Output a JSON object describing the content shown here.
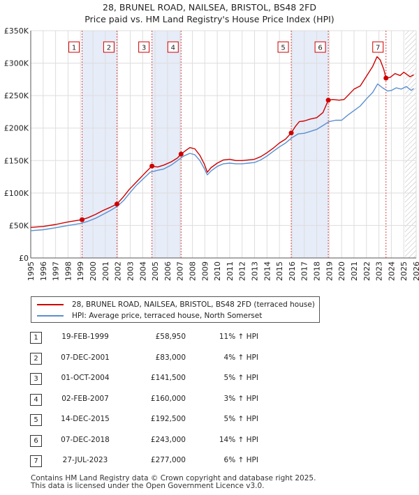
{
  "title_line1": "28, BRUNEL ROAD, NAILSEA, BRISTOL, BS48 2FD",
  "title_line2": "Price paid vs. HM Land Registry's House Price Index (HPI)",
  "chart_data": {
    "type": "line",
    "title": "28, BRUNEL ROAD, NAILSEA, BRISTOL, BS48 2FD — Price paid vs. HM Land Registry's House Price Index (HPI)",
    "xlim": [
      1995,
      2026
    ],
    "ylim": [
      0,
      350000
    ],
    "x_ticks": [
      1995,
      1996,
      1997,
      1998,
      1999,
      2000,
      2001,
      2002,
      2003,
      2004,
      2005,
      2006,
      2007,
      2008,
      2009,
      2010,
      2011,
      2012,
      2013,
      2014,
      2015,
      2016,
      2017,
      2018,
      2019,
      2020,
      2021,
      2022,
      2023,
      2024,
      2025,
      2026
    ],
    "y_ticks": [
      0,
      50000,
      100000,
      150000,
      200000,
      250000,
      300000,
      350000
    ],
    "y_tick_labels": [
      "£0",
      "£50K",
      "£100K",
      "£150K",
      "£200K",
      "£250K",
      "£300K",
      "£350K"
    ],
    "grid": true,
    "forecast_from": 2025.1,
    "series": [
      {
        "name": "28, BRUNEL ROAD, NAILSEA, BRISTOL, BS48 2FD (terraced house)",
        "color": "#cc0000",
        "points": [
          [
            1995.0,
            47000
          ],
          [
            1996.0,
            48500
          ],
          [
            1997.0,
            51500
          ],
          [
            1998.0,
            55500
          ],
          [
            1999.13,
            58950
          ],
          [
            1999.6,
            62000
          ],
          [
            2000.2,
            67000
          ],
          [
            2000.8,
            73000
          ],
          [
            2001.4,
            78000
          ],
          [
            2001.93,
            83000
          ],
          [
            2002.4,
            93000
          ],
          [
            2002.9,
            105000
          ],
          [
            2003.5,
            117000
          ],
          [
            2004.0,
            127000
          ],
          [
            2004.3,
            133000
          ],
          [
            2004.75,
            141500
          ],
          [
            2005.2,
            140000
          ],
          [
            2005.7,
            143000
          ],
          [
            2006.3,
            148000
          ],
          [
            2006.8,
            154000
          ],
          [
            2007.09,
            160000
          ],
          [
            2007.5,
            166000
          ],
          [
            2007.8,
            170000
          ],
          [
            2008.2,
            168000
          ],
          [
            2008.6,
            158000
          ],
          [
            2008.95,
            145000
          ],
          [
            2009.2,
            132000
          ],
          [
            2009.5,
            139000
          ],
          [
            2010.0,
            146000
          ],
          [
            2010.5,
            151000
          ],
          [
            2011.0,
            152000
          ],
          [
            2011.5,
            150000
          ],
          [
            2012.0,
            150000
          ],
          [
            2012.5,
            151000
          ],
          [
            2013.0,
            152000
          ],
          [
            2013.5,
            156000
          ],
          [
            2014.0,
            162000
          ],
          [
            2014.5,
            169000
          ],
          [
            2015.0,
            177000
          ],
          [
            2015.5,
            183000
          ],
          [
            2015.95,
            192500
          ],
          [
            2016.3,
            203000
          ],
          [
            2016.6,
            210000
          ],
          [
            2017.0,
            211000
          ],
          [
            2017.5,
            214000
          ],
          [
            2018.0,
            216000
          ],
          [
            2018.5,
            224000
          ],
          [
            2018.93,
            243000
          ],
          [
            2019.3,
            244000
          ],
          [
            2019.8,
            243000
          ],
          [
            2020.2,
            244000
          ],
          [
            2020.6,
            252000
          ],
          [
            2021.0,
            260000
          ],
          [
            2021.5,
            265000
          ],
          [
            2022.0,
            280000
          ],
          [
            2022.5,
            295000
          ],
          [
            2022.85,
            310000
          ],
          [
            2023.1,
            305000
          ],
          [
            2023.4,
            290000
          ],
          [
            2023.57,
            277000
          ],
          [
            2023.9,
            278000
          ],
          [
            2024.3,
            284000
          ],
          [
            2024.7,
            281000
          ],
          [
            2025.0,
            286000
          ],
          [
            2025.5,
            279000
          ],
          [
            2025.8,
            282000
          ]
        ]
      },
      {
        "name": "HPI: Average price, terraced house, North Somerset",
        "color": "#5b8fd0",
        "points": [
          [
            1995.0,
            42000
          ],
          [
            1996.0,
            43500
          ],
          [
            1997.0,
            46500
          ],
          [
            1998.0,
            50000
          ],
          [
            1999.0,
            53000
          ],
          [
            1999.6,
            56500
          ],
          [
            2000.2,
            61000
          ],
          [
            2000.8,
            67000
          ],
          [
            2001.4,
            73000
          ],
          [
            2002.0,
            80000
          ],
          [
            2002.5,
            89000
          ],
          [
            2003.0,
            101000
          ],
          [
            2003.5,
            112000
          ],
          [
            2004.0,
            121000
          ],
          [
            2004.6,
            132000
          ],
          [
            2005.2,
            135000
          ],
          [
            2005.7,
            137000
          ],
          [
            2006.3,
            143000
          ],
          [
            2006.8,
            150000
          ],
          [
            2007.3,
            157000
          ],
          [
            2007.8,
            161000
          ],
          [
            2008.2,
            159000
          ],
          [
            2008.6,
            150000
          ],
          [
            2008.95,
            138000
          ],
          [
            2009.2,
            128000
          ],
          [
            2009.5,
            134000
          ],
          [
            2010.0,
            141000
          ],
          [
            2010.5,
            145000
          ],
          [
            2011.0,
            146000
          ],
          [
            2011.5,
            145000
          ],
          [
            2012.0,
            145000
          ],
          [
            2012.5,
            146000
          ],
          [
            2013.0,
            147000
          ],
          [
            2013.5,
            151000
          ],
          [
            2014.0,
            157000
          ],
          [
            2014.5,
            164000
          ],
          [
            2015.0,
            171000
          ],
          [
            2015.5,
            177000
          ],
          [
            2016.0,
            185000
          ],
          [
            2016.5,
            191000
          ],
          [
            2017.0,
            192000
          ],
          [
            2017.5,
            195000
          ],
          [
            2018.0,
            198000
          ],
          [
            2018.5,
            204000
          ],
          [
            2019.0,
            210000
          ],
          [
            2019.5,
            212000
          ],
          [
            2020.0,
            212000
          ],
          [
            2020.5,
            220000
          ],
          [
            2021.0,
            227000
          ],
          [
            2021.5,
            234000
          ],
          [
            2022.0,
            245000
          ],
          [
            2022.5,
            255000
          ],
          [
            2022.9,
            268000
          ],
          [
            2023.3,
            262000
          ],
          [
            2023.7,
            257000
          ],
          [
            2024.0,
            258000
          ],
          [
            2024.4,
            262000
          ],
          [
            2024.8,
            260000
          ],
          [
            2025.2,
            264000
          ],
          [
            2025.6,
            258000
          ],
          [
            2025.8,
            261000
          ]
        ]
      }
    ],
    "sales": [
      {
        "label": "1",
        "x": 1999.13,
        "value": 58950
      },
      {
        "label": "2",
        "x": 2001.93,
        "value": 83000
      },
      {
        "label": "3",
        "x": 2004.75,
        "value": 141500
      },
      {
        "label": "4",
        "x": 2007.09,
        "value": 160000
      },
      {
        "label": "5",
        "x": 2015.95,
        "value": 192500
      },
      {
        "label": "6",
        "x": 2018.93,
        "value": 243000
      },
      {
        "label": "7",
        "x": 2023.57,
        "value": 277000
      }
    ]
  },
  "legend": {
    "property_label": "28, BRUNEL ROAD, NAILSEA, BRISTOL, BS48 2FD (terraced house)",
    "hpi_label": "HPI: Average price, terraced house, North Somerset"
  },
  "transactions": [
    {
      "num": "1",
      "date": "19-FEB-1999",
      "price": "£58,950",
      "hpi": "11% ↑ HPI"
    },
    {
      "num": "2",
      "date": "07-DEC-2001",
      "price": "£83,000",
      "hpi": "4% ↑ HPI"
    },
    {
      "num": "3",
      "date": "01-OCT-2004",
      "price": "£141,500",
      "hpi": "5% ↑ HPI"
    },
    {
      "num": "4",
      "date": "02-FEB-2007",
      "price": "£160,000",
      "hpi": "3% ↑ HPI"
    },
    {
      "num": "5",
      "date": "14-DEC-2015",
      "price": "£192,500",
      "hpi": "5% ↑ HPI"
    },
    {
      "num": "6",
      "date": "07-DEC-2018",
      "price": "£243,000",
      "hpi": "14% ↑ HPI"
    },
    {
      "num": "7",
      "date": "27-JUL-2023",
      "price": "£277,000",
      "hpi": "6% ↑ HPI"
    }
  ],
  "footer": {
    "line1": "Contains HM Land Registry data © Crown copyright and database right 2025.",
    "line2": "This data is licensed under the Open Government Licence v3.0."
  }
}
